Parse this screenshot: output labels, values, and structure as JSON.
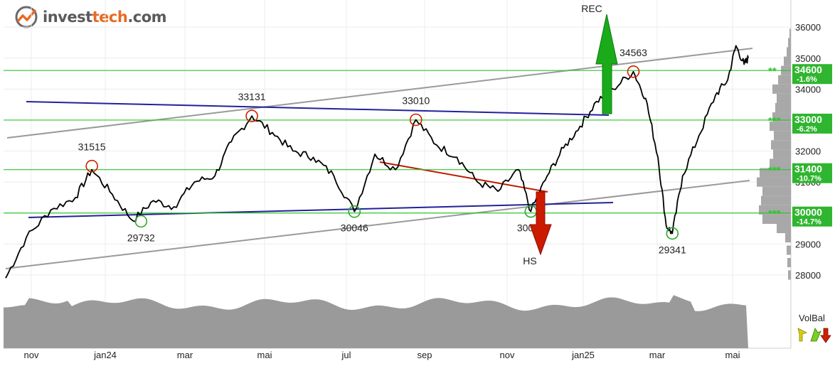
{
  "brand": {
    "part1": "invest",
    "part2": "tech",
    "part3": ".com",
    "accent": "#e86a24"
  },
  "chart_data": {
    "type": "line",
    "x_axis": {
      "labels": [
        "nov",
        "jan24",
        "mar",
        "mai",
        "jul",
        "sep",
        "nov",
        "jan25",
        "mar",
        "mai"
      ]
    },
    "y_axis": {
      "ticks": [
        28000,
        29000,
        30000,
        31000,
        32000,
        33000,
        34000,
        35000,
        36000
      ],
      "range": [
        27700,
        36600
      ]
    },
    "price_series": [
      {
        "x": 0,
        "y": 27900
      },
      {
        "x": 0.5,
        "y": 29200
      },
      {
        "x": 1.1,
        "y": 30100
      },
      {
        "x": 1.7,
        "y": 30500
      },
      {
        "x": 2.1,
        "y": 31400
      },
      {
        "x": 2.6,
        "y": 30600
      },
      {
        "x": 3.1,
        "y": 29750
      },
      {
        "x": 3.6,
        "y": 30400
      },
      {
        "x": 4.1,
        "y": 30200
      },
      {
        "x": 4.6,
        "y": 31000
      },
      {
        "x": 5.1,
        "y": 31200
      },
      {
        "x": 5.5,
        "y": 32300
      },
      {
        "x": 6.0,
        "y": 33131
      },
      {
        "x": 6.5,
        "y": 32600
      },
      {
        "x": 7.0,
        "y": 32000
      },
      {
        "x": 7.5,
        "y": 31800
      },
      {
        "x": 8.0,
        "y": 31200
      },
      {
        "x": 8.5,
        "y": 30046
      },
      {
        "x": 9.0,
        "y": 31900
      },
      {
        "x": 9.5,
        "y": 31400
      },
      {
        "x": 10.0,
        "y": 33010
      },
      {
        "x": 10.5,
        "y": 32200
      },
      {
        "x": 11.0,
        "y": 31800
      },
      {
        "x": 11.5,
        "y": 31000
      },
      {
        "x": 12.0,
        "y": 30700
      },
      {
        "x": 12.5,
        "y": 31400
      },
      {
        "x": 12.8,
        "y": 30049
      },
      {
        "x": 13.2,
        "y": 31200
      },
      {
        "x": 13.6,
        "y": 32100
      },
      {
        "x": 14.0,
        "y": 32800
      },
      {
        "x": 14.4,
        "y": 33600
      },
      {
        "x": 14.8,
        "y": 34000
      },
      {
        "x": 15.3,
        "y": 34563
      },
      {
        "x": 15.6,
        "y": 33700
      },
      {
        "x": 15.9,
        "y": 31800
      },
      {
        "x": 16.1,
        "y": 29600
      },
      {
        "x": 16.25,
        "y": 29341
      },
      {
        "x": 16.5,
        "y": 31200
      },
      {
        "x": 16.9,
        "y": 32500
      },
      {
        "x": 17.3,
        "y": 33800
      },
      {
        "x": 17.6,
        "y": 34300
      },
      {
        "x": 17.8,
        "y": 35400
      },
      {
        "x": 18.0,
        "y": 34800
      },
      {
        "x": 18.1,
        "y": 35000
      }
    ],
    "support_resistance": [
      {
        "value": 34600,
        "label": "34600",
        "pct": "-1.6%",
        "stars": "**"
      },
      {
        "value": 33000,
        "label": "33000",
        "pct": "-6.2%",
        "stars": "***"
      },
      {
        "value": 31400,
        "label": "31400",
        "pct": "-10.7%",
        "stars": "***"
      },
      {
        "value": 30000,
        "label": "30000",
        "pct": "-14.7%",
        "stars": "***"
      }
    ],
    "price_annotations": [
      {
        "label": "31515",
        "x": 2.1,
        "y": 31515,
        "kind": "top"
      },
      {
        "label": "29732",
        "x": 3.3,
        "y": 29732,
        "kind": "bottom"
      },
      {
        "label": "33131",
        "x": 6.0,
        "y": 33131,
        "kind": "top"
      },
      {
        "label": "30046",
        "x": 8.5,
        "y": 30046,
        "kind": "bottom"
      },
      {
        "label": "33010",
        "x": 10.0,
        "y": 33010,
        "kind": "top"
      },
      {
        "label": "30049",
        "x": 12.8,
        "y": 30049,
        "kind": "bottom"
      },
      {
        "label": "34563",
        "x": 15.3,
        "y": 34563,
        "kind": "top"
      },
      {
        "label": "29341",
        "x": 16.25,
        "y": 29341,
        "kind": "bottom"
      }
    ],
    "signals": [
      {
        "label": "REC",
        "direction": "up",
        "color": "#1aab1a"
      },
      {
        "label": "HS",
        "direction": "down",
        "color": "#cc1a00"
      }
    ],
    "volume_indicator": {
      "label": "VolBal"
    }
  }
}
